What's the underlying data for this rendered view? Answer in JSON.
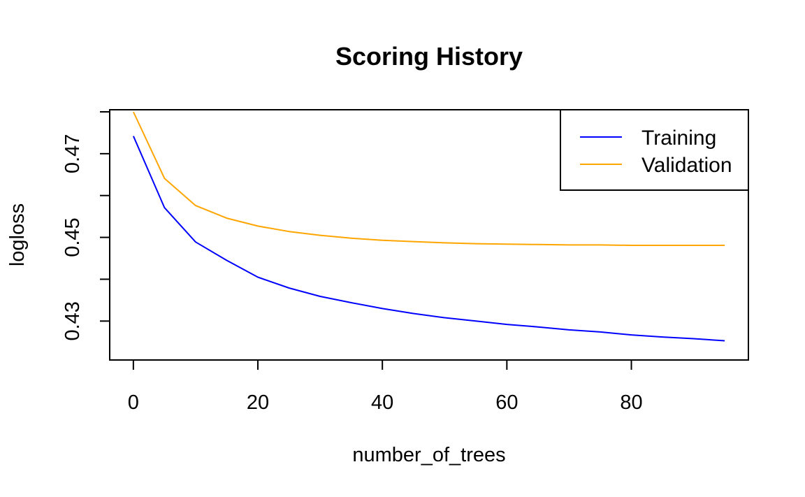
{
  "chart_data": {
    "type": "line",
    "title": "Scoring History",
    "xlabel": "number_of_trees",
    "ylabel": "logloss",
    "xlim": [
      -3.8,
      98.8
    ],
    "ylim": [
      0.4207,
      0.4805
    ],
    "x_ticks": [
      0,
      20,
      40,
      60,
      80
    ],
    "x_tick_labels": [
      "0",
      "20",
      "40",
      "60",
      "80"
    ],
    "y_ticks": [
      0.43,
      0.44,
      0.45,
      0.46,
      0.47,
      0.48
    ],
    "y_tick_labels": [
      "0.43",
      "",
      "0.45",
      "",
      "0.47",
      ""
    ],
    "grid": false,
    "legend_position": "top-right",
    "x": [
      0,
      5,
      10,
      15,
      20,
      25,
      30,
      35,
      40,
      45,
      50,
      55,
      60,
      65,
      70,
      75,
      80,
      85,
      90,
      95
    ],
    "series": [
      {
        "name": "Training",
        "color": "#0000FF",
        "values": [
          0.4742,
          0.4571,
          0.4489,
          0.4445,
          0.4405,
          0.4379,
          0.4359,
          0.4344,
          0.433,
          0.4318,
          0.4308,
          0.43,
          0.4292,
          0.4286,
          0.4279,
          0.4274,
          0.4267,
          0.4262,
          0.4258,
          0.4253
        ]
      },
      {
        "name": "Validation",
        "color": "#FFA500",
        "values": [
          0.48,
          0.4641,
          0.4576,
          0.4546,
          0.4527,
          0.4514,
          0.4505,
          0.4498,
          0.4493,
          0.449,
          0.4487,
          0.4485,
          0.4484,
          0.4483,
          0.4482,
          0.4482,
          0.4481,
          0.4481,
          0.4481,
          0.4481
        ]
      }
    ]
  }
}
